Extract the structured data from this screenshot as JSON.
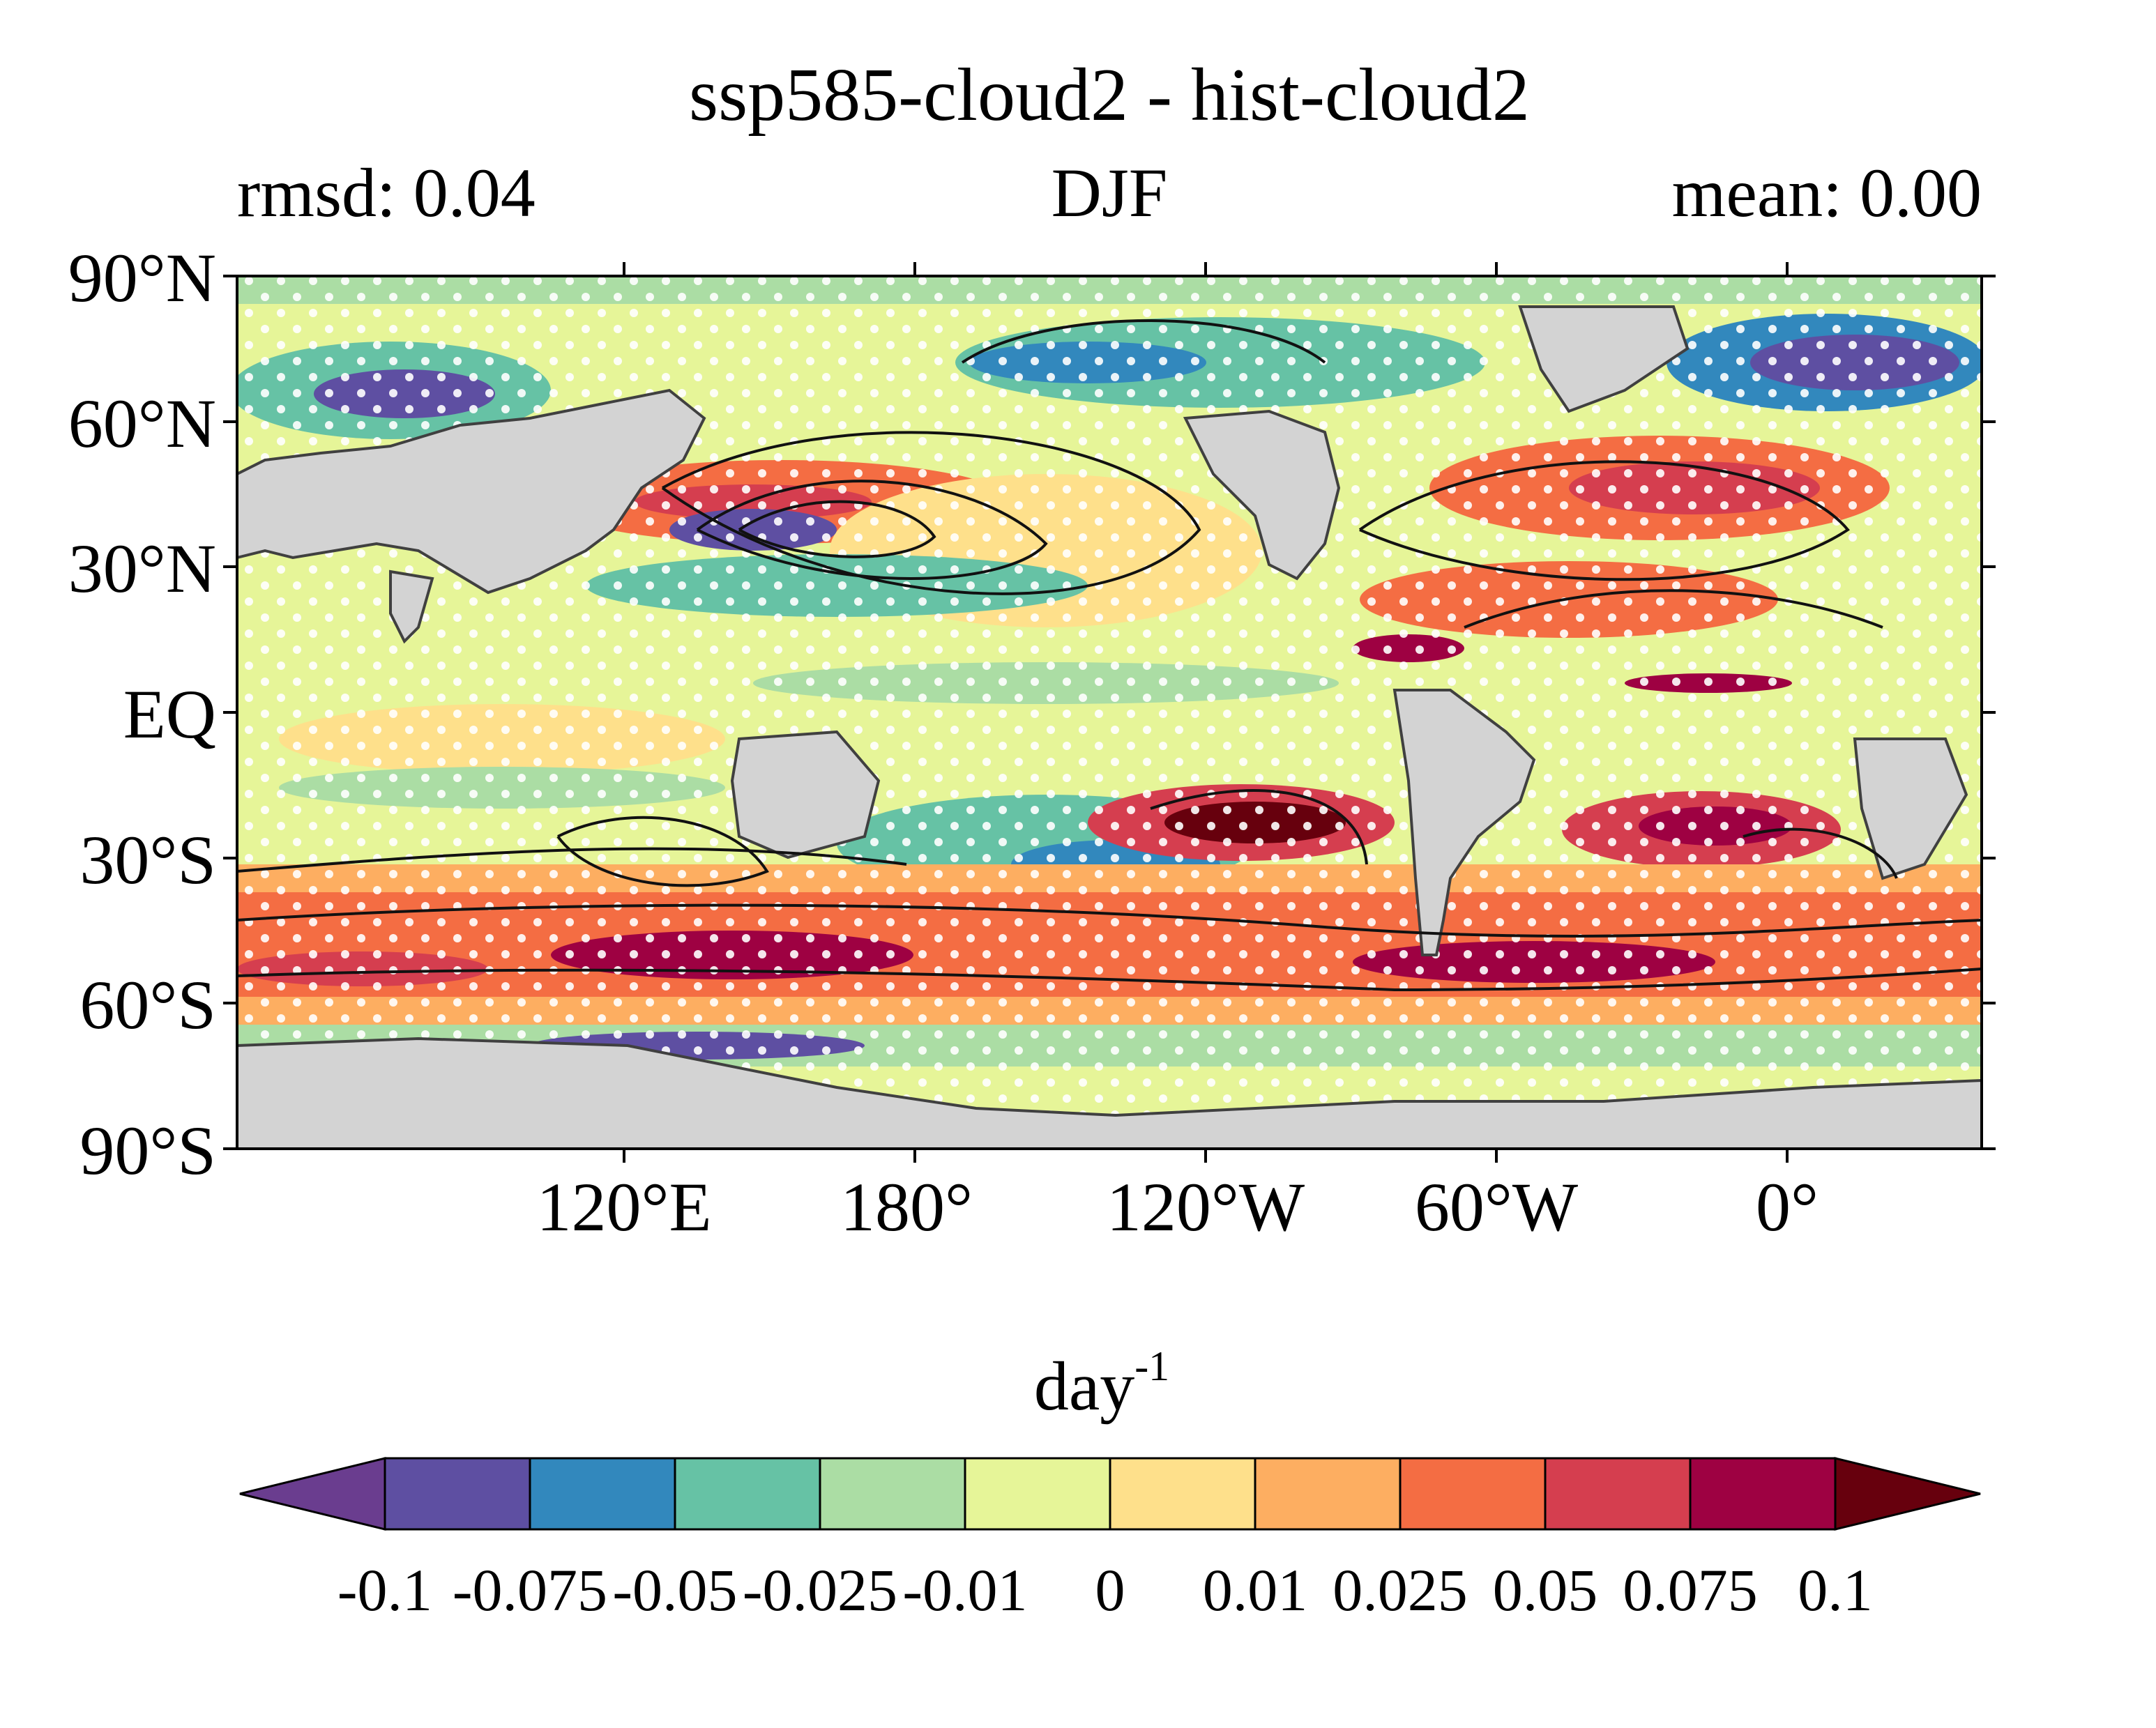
{
  "chart_data": {
    "type": "heatmap",
    "title": "ssp585-cloud2 - hist-cloud2",
    "left_label": "rmsd: 0.04",
    "center_label": "DJF",
    "right_label": "mean: 0.00",
    "xlabel": "",
    "ylabel": "",
    "x_ticks": [
      "120°E",
      "180°",
      "120°W",
      "60°W",
      "0°"
    ],
    "y_ticks": [
      "90°N",
      "60°N",
      "30°N",
      "EQ",
      "30°S",
      "60°S",
      "90°S"
    ],
    "y_tick_values": [
      90,
      60,
      30,
      0,
      -30,
      -60,
      -90
    ],
    "colorbar": {
      "unit_base": "day",
      "unit_exponent": "-1",
      "levels": [
        "-0.1",
        "-0.075",
        "-0.05",
        "-0.025",
        "-0.01",
        "0",
        "0.01",
        "0.025",
        "0.05",
        "0.075",
        "0.1"
      ],
      "colors": [
        "#5e4fa2",
        "#3288bd",
        "#66c2a5",
        "#abdda4",
        "#e6f598",
        "#fee08b",
        "#fdae61",
        "#f46d43",
        "#d53e4f",
        "#9e0142"
      ],
      "under_color": "#6a3d8f",
      "over_color": "#67000d",
      "extend": "both"
    },
    "land_color": "#d3d3d3",
    "stippling": "white dots",
    "contours": "black lines"
  }
}
